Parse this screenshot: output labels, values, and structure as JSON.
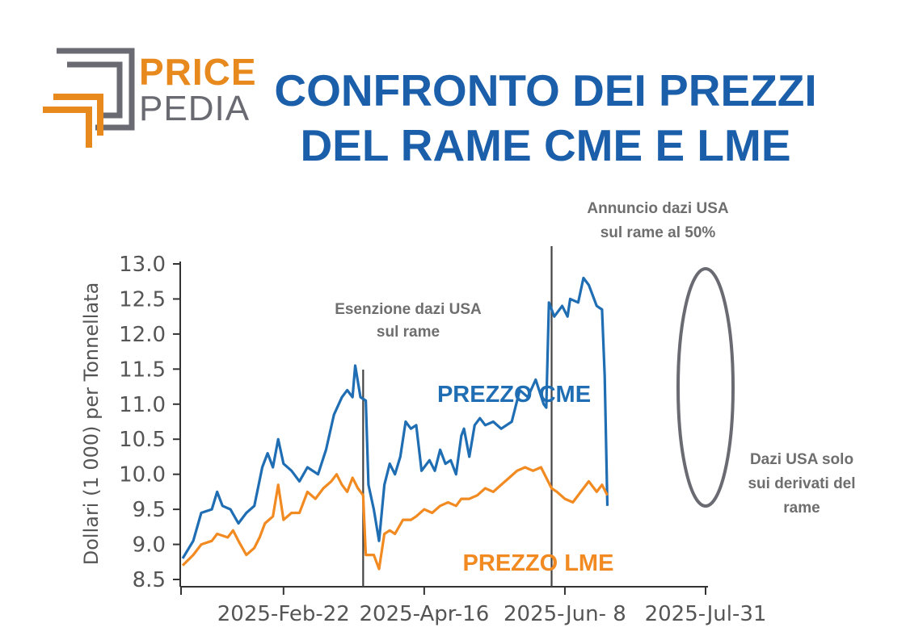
{
  "logo": {
    "line1": "PRICE",
    "line2": "PEDIA"
  },
  "title": {
    "line1": "CONFRONTO DEI PREZZI",
    "line2": "DEL RAME CME E LME"
  },
  "colors": {
    "cme": "#1f6db3",
    "lme": "#f28a22",
    "title": "#1b5faa",
    "annotation": "#6e6e6e",
    "logo_orange": "#e8891e",
    "logo_gray": "#6a6a72"
  },
  "chart_data": {
    "type": "line",
    "ylabel": "Dollari (1 000) per Tonnellata",
    "xlabel": "",
    "ylim": [
      8.5,
      13.0
    ],
    "yticks": [
      "8.5",
      "9.0",
      "9.5",
      "10.0",
      "10.5",
      "11.0",
      "11.5",
      "12.0",
      "12.5",
      "13.0"
    ],
    "xticks": [
      {
        "x": 38,
        "label": "2025-Feb-22"
      },
      {
        "x": 91,
        "label": "2025-Apr-16"
      },
      {
        "x": 144,
        "label": "2025-Jun- 8"
      },
      {
        "x": 197,
        "label": "2025-Jul-31"
      }
    ],
    "xlim": [
      0,
      197
    ],
    "vlines": [
      {
        "x": 68
      },
      {
        "x": 139
      }
    ],
    "series": [
      {
        "name": "PREZZO CME",
        "key": "cme",
        "points": [
          [
            0,
            8.8
          ],
          [
            4,
            9.05
          ],
          [
            7,
            9.45
          ],
          [
            11,
            9.5
          ],
          [
            13,
            9.75
          ],
          [
            15,
            9.55
          ],
          [
            18,
            9.5
          ],
          [
            21,
            9.3
          ],
          [
            24,
            9.45
          ],
          [
            27,
            9.55
          ],
          [
            30,
            10.1
          ],
          [
            32,
            10.3
          ],
          [
            34,
            10.1
          ],
          [
            36,
            10.5
          ],
          [
            38,
            10.15
          ],
          [
            41,
            10.05
          ],
          [
            44,
            9.9
          ],
          [
            47,
            10.1
          ],
          [
            51,
            10.0
          ],
          [
            54,
            10.35
          ],
          [
            57,
            10.85
          ],
          [
            60,
            11.1
          ],
          [
            62,
            11.2
          ],
          [
            64,
            11.1
          ],
          [
            65,
            11.55
          ],
          [
            67,
            11.1
          ],
          [
            69,
            11.05
          ],
          [
            70,
            9.85
          ],
          [
            72,
            9.5
          ],
          [
            74,
            9.05
          ],
          [
            76,
            9.85
          ],
          [
            78,
            10.15
          ],
          [
            80,
            10.0
          ],
          [
            82,
            10.25
          ],
          [
            84,
            10.75
          ],
          [
            86,
            10.65
          ],
          [
            88,
            10.7
          ],
          [
            90,
            10.05
          ],
          [
            93,
            10.2
          ],
          [
            95,
            10.05
          ],
          [
            97,
            10.35
          ],
          [
            99,
            10.15
          ],
          [
            101,
            10.2
          ],
          [
            103,
            10.0
          ],
          [
            105,
            10.55
          ],
          [
            106,
            10.65
          ],
          [
            108,
            10.25
          ],
          [
            110,
            10.7
          ],
          [
            112,
            10.8
          ],
          [
            114,
            10.7
          ],
          [
            117,
            10.75
          ],
          [
            120,
            10.65
          ],
          [
            124,
            10.75
          ],
          [
            127,
            11.2
          ],
          [
            130,
            11.1
          ],
          [
            133,
            11.35
          ],
          [
            136,
            11.0
          ],
          [
            137,
            10.95
          ],
          [
            138,
            12.45
          ],
          [
            140,
            12.25
          ],
          [
            143,
            12.4
          ],
          [
            145,
            12.25
          ],
          [
            146,
            12.5
          ],
          [
            149,
            12.45
          ],
          [
            151,
            12.8
          ],
          [
            153,
            12.7
          ],
          [
            156,
            12.4
          ],
          [
            158,
            12.35
          ],
          [
            159,
            11.4
          ],
          [
            160,
            9.55
          ]
        ]
      },
      {
        "name": "PREZZO LME",
        "key": "lme",
        "points": [
          [
            0,
            8.7
          ],
          [
            4,
            8.85
          ],
          [
            7,
            9.0
          ],
          [
            11,
            9.05
          ],
          [
            13,
            9.15
          ],
          [
            17,
            9.1
          ],
          [
            19,
            9.2
          ],
          [
            21,
            9.05
          ],
          [
            24,
            8.85
          ],
          [
            27,
            8.95
          ],
          [
            29,
            9.1
          ],
          [
            31,
            9.3
          ],
          [
            34,
            9.4
          ],
          [
            36,
            9.85
          ],
          [
            38,
            9.35
          ],
          [
            41,
            9.45
          ],
          [
            44,
            9.45
          ],
          [
            47,
            9.75
          ],
          [
            50,
            9.65
          ],
          [
            53,
            9.8
          ],
          [
            56,
            9.9
          ],
          [
            58,
            10.0
          ],
          [
            60,
            9.85
          ],
          [
            62,
            9.75
          ],
          [
            64,
            9.95
          ],
          [
            66,
            9.8
          ],
          [
            68,
            9.7
          ],
          [
            69,
            8.85
          ],
          [
            72,
            8.85
          ],
          [
            74,
            8.65
          ],
          [
            76,
            9.15
          ],
          [
            78,
            9.2
          ],
          [
            80,
            9.15
          ],
          [
            83,
            9.35
          ],
          [
            86,
            9.35
          ],
          [
            88,
            9.4
          ],
          [
            91,
            9.5
          ],
          [
            94,
            9.45
          ],
          [
            97,
            9.55
          ],
          [
            100,
            9.6
          ],
          [
            103,
            9.55
          ],
          [
            105,
            9.65
          ],
          [
            108,
            9.65
          ],
          [
            111,
            9.7
          ],
          [
            114,
            9.8
          ],
          [
            117,
            9.75
          ],
          [
            120,
            9.85
          ],
          [
            123,
            9.95
          ],
          [
            126,
            10.05
          ],
          [
            129,
            10.1
          ],
          [
            132,
            10.05
          ],
          [
            135,
            10.1
          ],
          [
            137,
            9.95
          ],
          [
            139,
            9.8
          ],
          [
            141,
            9.75
          ],
          [
            144,
            9.65
          ],
          [
            147,
            9.6
          ],
          [
            150,
            9.75
          ],
          [
            153,
            9.9
          ],
          [
            156,
            9.75
          ],
          [
            158,
            9.85
          ],
          [
            160,
            9.7
          ]
        ]
      }
    ],
    "annotations": [
      {
        "key": "exemption",
        "lines": [
          "Esenzione dazi USA",
          "sul rame"
        ]
      },
      {
        "key": "announcement",
        "lines": [
          "Annuncio dazi USA",
          "sul rame al 50%"
        ]
      },
      {
        "key": "derivatives",
        "lines": [
          "Dazi USA solo",
          "sui derivati del",
          "rame"
        ]
      }
    ],
    "series_labels": {
      "cme": "PREZZO CME",
      "lme": "PREZZO LME"
    }
  }
}
